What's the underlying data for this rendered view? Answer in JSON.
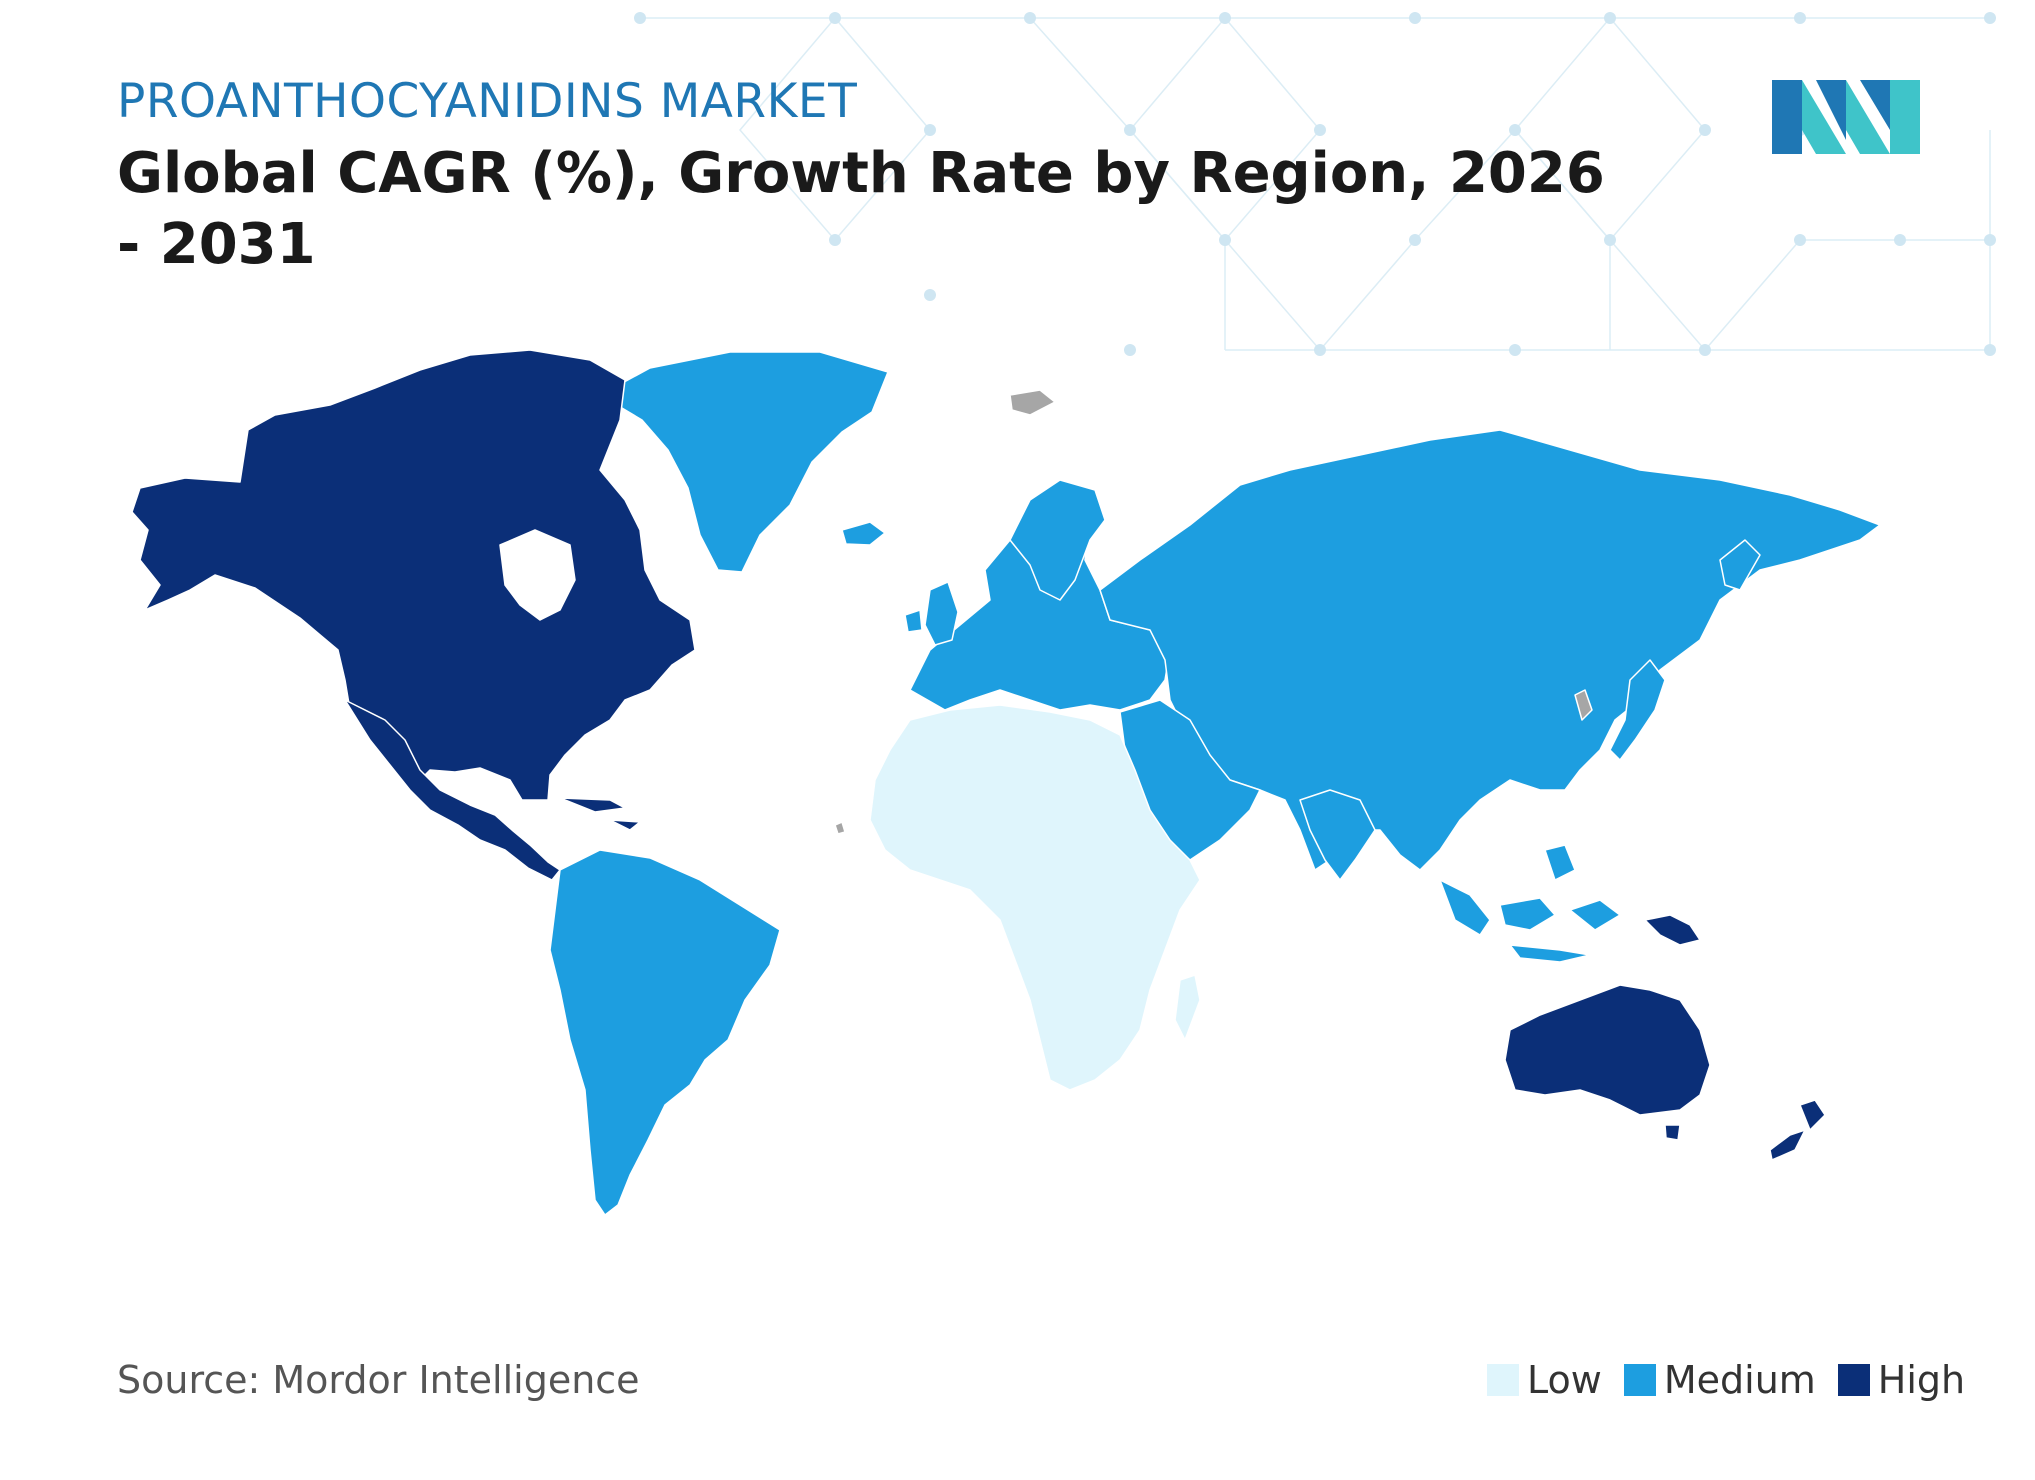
{
  "header": {
    "subtitle": "PROANTHOCYANIDINS MARKET",
    "title": "Global  CAGR (%), Growth Rate by Region, 2026 - 2031"
  },
  "footer": {
    "source": "Source: Mordor Intelligence"
  },
  "legend": [
    {
      "label": "Low",
      "color": "#dff5fc"
    },
    {
      "label": "Medium",
      "color": "#1d9ee0"
    },
    {
      "label": "High",
      "color": "#0b2f78"
    }
  ],
  "colors": {
    "no_data": "#a6a6a6",
    "border": "#ffffff",
    "accent": "#1f77b4",
    "logo_dark": "#1f77b4",
    "logo_light": "#3fc4c9",
    "pattern": "#bfe3f3"
  },
  "regions": [
    {
      "name": "North America",
      "category": "High"
    },
    {
      "name": "South America",
      "category": "Medium"
    },
    {
      "name": "Europe",
      "category": "Medium"
    },
    {
      "name": "Asia-Pacific",
      "category": "Medium"
    },
    {
      "name": "Australia and New Zealand",
      "category": "High"
    },
    {
      "name": "Middle East",
      "category": "Medium"
    },
    {
      "name": "Africa",
      "category": "Low"
    }
  ]
}
